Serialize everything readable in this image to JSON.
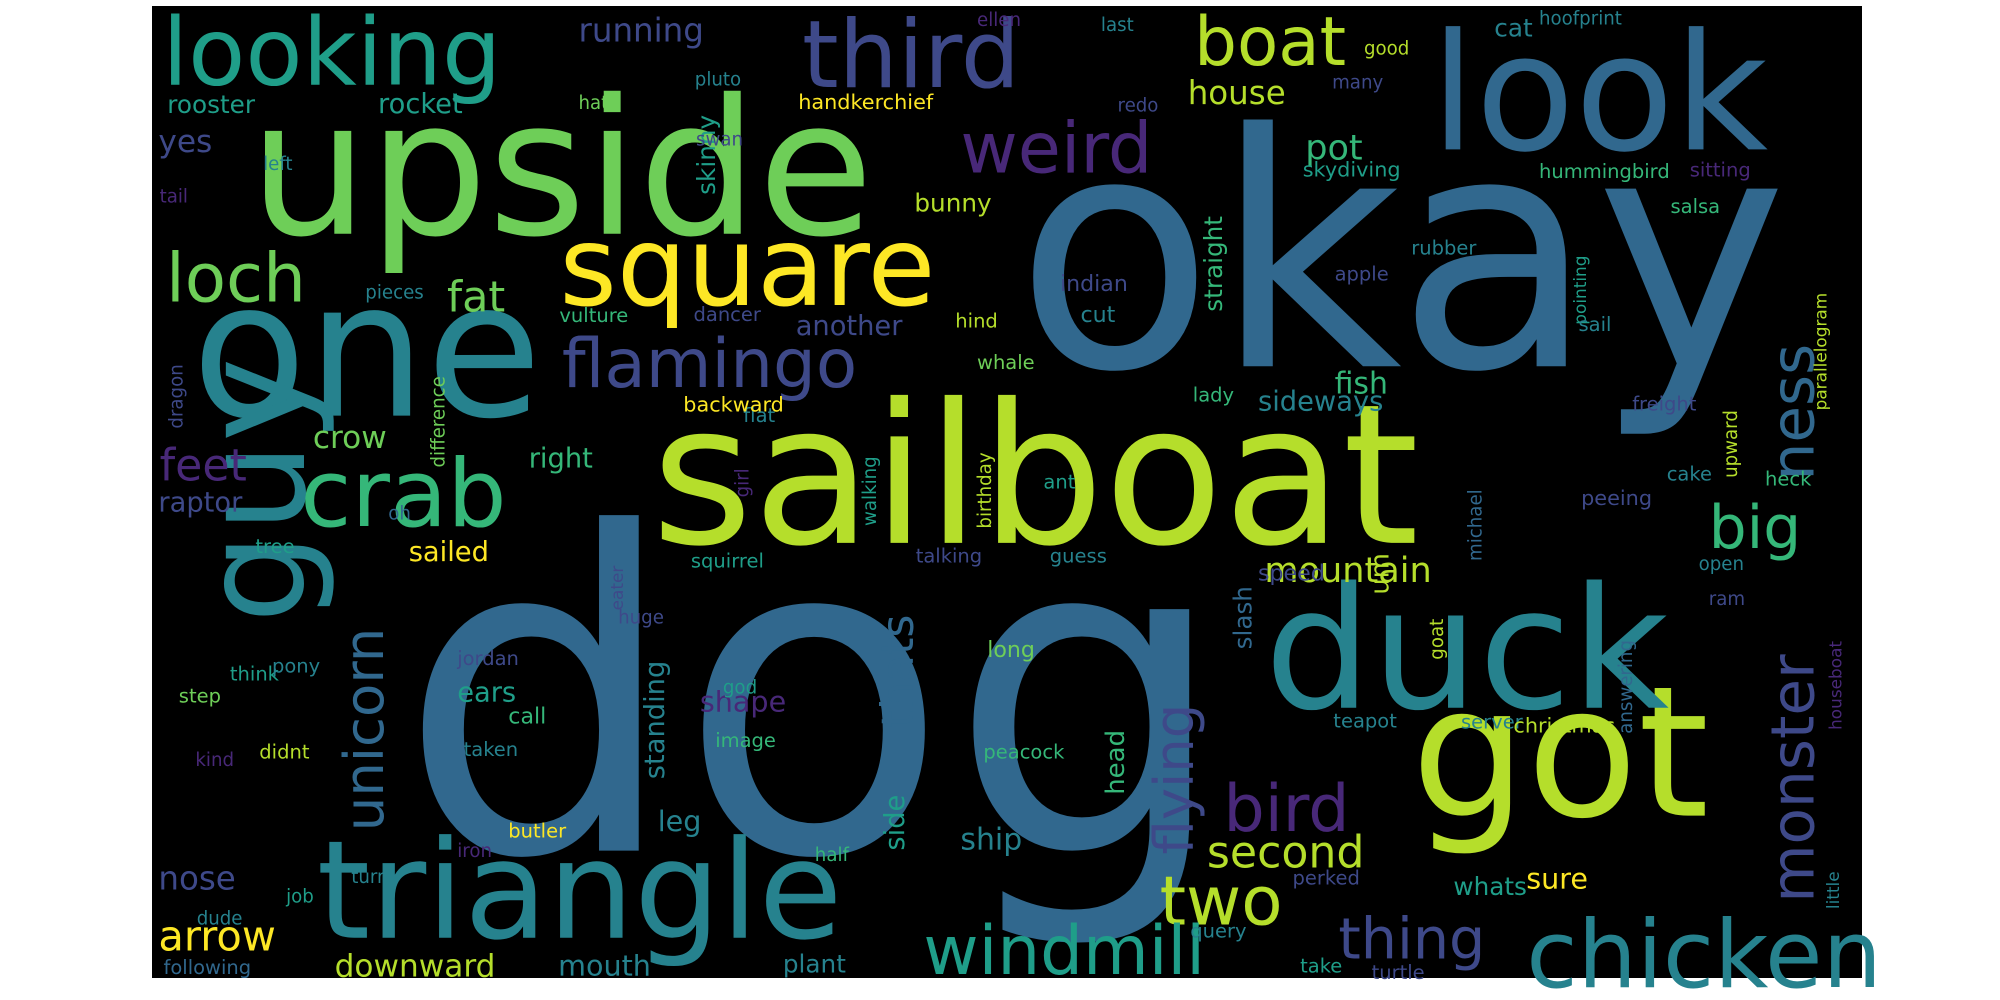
{
  "palette": {
    "background": "#ffffff",
    "canvas": "#000000",
    "viridis": [
      "#440154",
      "#482878",
      "#3e4989",
      "#31688e",
      "#26828e",
      "#1f9e89",
      "#35b779",
      "#6ece58",
      "#b5de2b",
      "#fde725"
    ]
  },
  "words": [
    {
      "text": "dog",
      "color": "#31688e",
      "rotated": false
    },
    {
      "text": "okay",
      "color": "#31688e",
      "rotated": false
    },
    {
      "text": "sailboat",
      "color": "#b5de2b",
      "rotated": false
    },
    {
      "text": "upside",
      "color": "#6ece58",
      "rotated": false
    },
    {
      "text": "one",
      "color": "#26828e",
      "rotated": false
    },
    {
      "text": "look",
      "color": "#31688e",
      "rotated": false
    },
    {
      "text": "got",
      "color": "#b5de2b",
      "rotated": false
    },
    {
      "text": "duck",
      "color": "#26828e",
      "rotated": false
    },
    {
      "text": "guy",
      "color": "#26828e",
      "rotated": true
    },
    {
      "text": "triangle",
      "color": "#26828e",
      "rotated": false
    },
    {
      "text": "looking",
      "color": "#1f9e89",
      "rotated": false
    },
    {
      "text": "third",
      "color": "#3e4989",
      "rotated": false
    },
    {
      "text": "square",
      "color": "#fde725",
      "rotated": false
    },
    {
      "text": "chicken",
      "color": "#26828e",
      "rotated": false
    },
    {
      "text": "crab",
      "color": "#35b779",
      "rotated": false
    },
    {
      "text": "boat",
      "color": "#b5de2b",
      "rotated": false
    },
    {
      "text": "weird",
      "color": "#482878",
      "rotated": false
    },
    {
      "text": "loch",
      "color": "#6ece58",
      "rotated": false
    },
    {
      "text": "flamingo",
      "color": "#3e4989",
      "rotated": false
    },
    {
      "text": "bird",
      "color": "#482878",
      "rotated": false
    },
    {
      "text": "two",
      "color": "#b5de2b",
      "rotated": false
    },
    {
      "text": "windmill",
      "color": "#1f9e89",
      "rotated": false
    },
    {
      "text": "monster",
      "color": "#3e4989",
      "rotated": true
    },
    {
      "text": "ness",
      "color": "#31688e",
      "rotated": true
    },
    {
      "text": "big",
      "color": "#35b779",
      "rotated": false
    },
    {
      "text": "flying",
      "color": "#3e4989",
      "rotated": true
    },
    {
      "text": "unicorn",
      "color": "#31688e",
      "rotated": true
    },
    {
      "text": "thing",
      "color": "#3e4989",
      "rotated": false
    },
    {
      "text": "second",
      "color": "#b5de2b",
      "rotated": false
    },
    {
      "text": "arrow",
      "color": "#fde725",
      "rotated": false
    },
    {
      "text": "thats",
      "color": "#31688e",
      "rotated": true
    },
    {
      "text": "feet",
      "color": "#482878",
      "rotated": false
    },
    {
      "text": "fat",
      "color": "#6ece58",
      "rotated": false
    },
    {
      "text": "mountain",
      "color": "#b5de2b",
      "rotated": false
    },
    {
      "text": "running",
      "color": "#3e4989",
      "rotated": false
    },
    {
      "text": "house",
      "color": "#b5de2b",
      "rotated": false
    },
    {
      "text": "pot",
      "color": "#35b779",
      "rotated": false
    },
    {
      "text": "downward",
      "color": "#b5de2b",
      "rotated": false
    },
    {
      "text": "ship",
      "color": "#26828e",
      "rotated": false
    },
    {
      "text": "shape",
      "color": "#482878",
      "rotated": false
    },
    {
      "text": "sideways",
      "color": "#26828e",
      "rotated": false
    },
    {
      "text": "fish",
      "color": "#35b779",
      "rotated": false
    },
    {
      "text": "sure",
      "color": "#fde725",
      "rotated": false
    },
    {
      "text": "nose",
      "color": "#3e4989",
      "rotated": false
    },
    {
      "text": "mouth",
      "color": "#26828e",
      "rotated": false
    },
    {
      "text": "ears",
      "color": "#1f9e89",
      "rotated": false
    },
    {
      "text": "crow",
      "color": "#6ece58",
      "rotated": false
    },
    {
      "text": "another",
      "color": "#3e4989",
      "rotated": false
    },
    {
      "text": "right",
      "color": "#35b779",
      "rotated": false
    },
    {
      "text": "sailed",
      "color": "#fde725",
      "rotated": false
    },
    {
      "text": "standing",
      "color": "#26828e",
      "rotated": true
    },
    {
      "text": "side",
      "color": "#1f9e89",
      "rotated": true
    },
    {
      "text": "leg",
      "color": "#26828e",
      "rotated": false
    },
    {
      "text": "head",
      "color": "#35b779",
      "rotated": true
    },
    {
      "text": "raptor",
      "color": "#3e4989",
      "rotated": false
    },
    {
      "text": "yes",
      "color": "#3e4989",
      "rotated": false
    },
    {
      "text": "rocket",
      "color": "#1f9e89",
      "rotated": false
    },
    {
      "text": "rooster",
      "color": "#1f9e89",
      "rotated": false
    },
    {
      "text": "skinny",
      "color": "#1f9e89",
      "rotated": true
    },
    {
      "text": "bunny",
      "color": "#b5de2b",
      "rotated": false
    },
    {
      "text": "straight",
      "color": "#35b779",
      "rotated": true
    },
    {
      "text": "um",
      "color": "#b5de2b",
      "rotated": true
    },
    {
      "text": "whats",
      "color": "#1f9e89",
      "rotated": false
    },
    {
      "text": "plant",
      "color": "#26828e",
      "rotated": false
    },
    {
      "text": "slash",
      "color": "#31688e",
      "rotated": true
    },
    {
      "text": "cat",
      "color": "#26828e",
      "rotated": false
    },
    {
      "text": "speed",
      "color": "#3e4989",
      "rotated": false
    },
    {
      "text": "long",
      "color": "#6ece58",
      "rotated": false
    },
    {
      "text": "cut",
      "color": "#26828e",
      "rotated": false
    },
    {
      "text": "indian",
      "color": "#3e4989",
      "rotated": false
    },
    {
      "text": "hind",
      "color": "#b5de2b",
      "rotated": false
    },
    {
      "text": "whale",
      "color": "#6ece58",
      "rotated": false
    },
    {
      "text": "lady",
      "color": "#35b779",
      "rotated": false
    },
    {
      "text": "flat",
      "color": "#26828e",
      "rotated": false
    },
    {
      "text": "backward",
      "color": "#fde725",
      "rotated": false
    },
    {
      "text": "ant",
      "color": "#1f9e89",
      "rotated": false
    },
    {
      "text": "guess",
      "color": "#26828e",
      "rotated": false
    },
    {
      "text": "talking",
      "color": "#3e4989",
      "rotated": false
    },
    {
      "text": "squirrel",
      "color": "#1f9e89",
      "rotated": false
    },
    {
      "text": "huge",
      "color": "#3e4989",
      "rotated": false
    },
    {
      "text": "eater",
      "color": "#3e4989",
      "rotated": true
    },
    {
      "text": "jordan",
      "color": "#3e4989",
      "rotated": false
    },
    {
      "text": "god",
      "color": "#1f9e89",
      "rotated": false
    },
    {
      "text": "call",
      "color": "#35b779",
      "rotated": false
    },
    {
      "text": "taken",
      "color": "#26828e",
      "rotated": false
    },
    {
      "text": "image",
      "color": "#35b779",
      "rotated": false
    },
    {
      "text": "didnt",
      "color": "#b5de2b",
      "rotated": false
    },
    {
      "text": "butler",
      "color": "#fde725",
      "rotated": false
    },
    {
      "text": "iron",
      "color": "#482878",
      "rotated": false
    },
    {
      "text": "half",
      "color": "#35b779",
      "rotated": false
    },
    {
      "text": "turn",
      "color": "#26828e",
      "rotated": false
    },
    {
      "text": "job",
      "color": "#1f9e89",
      "rotated": false
    },
    {
      "text": "dude",
      "color": "#26828e",
      "rotated": false
    },
    {
      "text": "following",
      "color": "#31688e",
      "rotated": false
    },
    {
      "text": "think",
      "color": "#1f9e89",
      "rotated": false
    },
    {
      "text": "pony",
      "color": "#26828e",
      "rotated": false
    },
    {
      "text": "step",
      "color": "#6ece58",
      "rotated": false
    },
    {
      "text": "kind",
      "color": "#482878",
      "rotated": false
    },
    {
      "text": "tree",
      "color": "#1f9e89",
      "rotated": false
    },
    {
      "text": "oh",
      "color": "#31688e",
      "rotated": false
    },
    {
      "text": "dragon",
      "color": "#3e4989",
      "rotated": true
    },
    {
      "text": "difference",
      "color": "#6ece58",
      "rotated": true
    },
    {
      "text": "pieces",
      "color": "#26828e",
      "rotated": false
    },
    {
      "text": "left",
      "color": "#26828e",
      "rotated": false
    },
    {
      "text": "tail",
      "color": "#482878",
      "rotated": false
    },
    {
      "text": "hat",
      "color": "#6ece58",
      "rotated": false
    },
    {
      "text": "pluto",
      "color": "#26828e",
      "rotated": false
    },
    {
      "text": "swan",
      "color": "#3e4989",
      "rotated": false
    },
    {
      "text": "handkerchief",
      "color": "#fde725",
      "rotated": false
    },
    {
      "text": "ellen",
      "color": "#482878",
      "rotated": false
    },
    {
      "text": "last",
      "color": "#26828e",
      "rotated": false
    },
    {
      "text": "redo",
      "color": "#3e4989",
      "rotated": false
    },
    {
      "text": "good",
      "color": "#b5de2b",
      "rotated": false
    },
    {
      "text": "many",
      "color": "#3e4989",
      "rotated": false
    },
    {
      "text": "hoofprint",
      "color": "#26828e",
      "rotated": false
    },
    {
      "text": "skydiving",
      "color": "#1f9e89",
      "rotated": false
    },
    {
      "text": "hummingbird",
      "color": "#35b779",
      "rotated": false
    },
    {
      "text": "sitting",
      "color": "#482878",
      "rotated": false
    },
    {
      "text": "salsa",
      "color": "#35b779",
      "rotated": false
    },
    {
      "text": "parallelogram",
      "color": "#b5de2b",
      "rotated": true
    },
    {
      "text": "pointing",
      "color": "#1f9e89",
      "rotated": true
    },
    {
      "text": "rubber",
      "color": "#26828e",
      "rotated": false
    },
    {
      "text": "apple",
      "color": "#3e4989",
      "rotated": false
    },
    {
      "text": "sail",
      "color": "#26828e",
      "rotated": false
    },
    {
      "text": "vulture",
      "color": "#35b779",
      "rotated": false
    },
    {
      "text": "dancer",
      "color": "#3e4989",
      "rotated": false
    },
    {
      "text": "freight",
      "color": "#3e4989",
      "rotated": false
    },
    {
      "text": "upward",
      "color": "#b5de2b",
      "rotated": true
    },
    {
      "text": "michael",
      "color": "#31688e",
      "rotated": true
    },
    {
      "text": "cake",
      "color": "#26828e",
      "rotated": false
    },
    {
      "text": "heck",
      "color": "#35b779",
      "rotated": false
    },
    {
      "text": "peeing",
      "color": "#3e4989",
      "rotated": false
    },
    {
      "text": "walking",
      "color": "#1f9e89",
      "rotated": true
    },
    {
      "text": "birthday",
      "color": "#b5de2b",
      "rotated": true
    },
    {
      "text": "girl",
      "color": "#482878",
      "rotated": true
    },
    {
      "text": "open",
      "color": "#26828e",
      "rotated": false
    },
    {
      "text": "goat",
      "color": "#b5de2b",
      "rotated": true
    },
    {
      "text": "answering",
      "color": "#31688e",
      "rotated": true
    },
    {
      "text": "ram",
      "color": "#3e4989",
      "rotated": false
    },
    {
      "text": "houseboat",
      "color": "#482878",
      "rotated": true
    },
    {
      "text": "teapot",
      "color": "#26828e",
      "rotated": false
    },
    {
      "text": "server",
      "color": "#26828e",
      "rotated": false
    },
    {
      "text": "christmas",
      "color": "#b5de2b",
      "rotated": false
    },
    {
      "text": "peacock",
      "color": "#35b779",
      "rotated": false
    },
    {
      "text": "perked",
      "color": "#3e4989",
      "rotated": false
    },
    {
      "text": "query",
      "color": "#26828e",
      "rotated": false
    },
    {
      "text": "take",
      "color": "#1f9e89",
      "rotated": false
    },
    {
      "text": "turtle",
      "color": "#3e4989",
      "rotated": false
    },
    {
      "text": "little",
      "color": "#26828e",
      "rotated": true
    }
  ]
}
